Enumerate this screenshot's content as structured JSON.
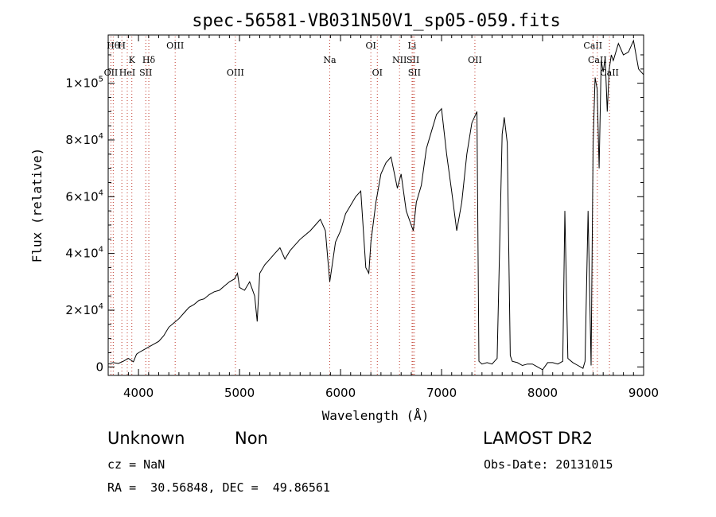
{
  "chart_data": {
    "type": "line",
    "title": "spec-56581-VB031N50V1_sp05-059.fits",
    "xlabel": "Wavelength (Å)",
    "ylabel": "Flux (relative)",
    "xlim": [
      3700,
      9000
    ],
    "ylim": [
      -3000,
      117000
    ],
    "xticks": [
      {
        "value": 4000,
        "label": "4000"
      },
      {
        "value": 5000,
        "label": "5000"
      },
      {
        "value": 6000,
        "label": "6000"
      },
      {
        "value": 7000,
        "label": "7000"
      },
      {
        "value": 8000,
        "label": "8000"
      },
      {
        "value": 9000,
        "label": "9000"
      }
    ],
    "yticks": [
      {
        "value": 0,
        "mant": "0",
        "exp": ""
      },
      {
        "value": 20000,
        "mant": "2×10",
        "exp": "4"
      },
      {
        "value": 40000,
        "mant": "4×10",
        "exp": "4"
      },
      {
        "value": 60000,
        "mant": "6×10",
        "exp": "4"
      },
      {
        "value": 80000,
        "mant": "8×10",
        "exp": "4"
      },
      {
        "value": 100000,
        "mant": "1×10",
        "exp": "5"
      }
    ],
    "grid": false,
    "spectrum": {
      "x": [
        3700,
        3750,
        3800,
        3850,
        3900,
        3950,
        3980,
        4000,
        4050,
        4100,
        4150,
        4200,
        4250,
        4300,
        4350,
        4400,
        4450,
        4500,
        4550,
        4600,
        4650,
        4700,
        4750,
        4800,
        4850,
        4900,
        4950,
        4980,
        5000,
        5050,
        5100,
        5150,
        5175,
        5200,
        5250,
        5300,
        5350,
        5400,
        5450,
        5500,
        5550,
        5600,
        5650,
        5700,
        5750,
        5800,
        5850,
        5893,
        5950,
        6000,
        6050,
        6100,
        6150,
        6200,
        6250,
        6280,
        6300,
        6350,
        6400,
        6450,
        6500,
        6563,
        6600,
        6650,
        6700,
        6720,
        6750,
        6800,
        6850,
        6900,
        6950,
        7000,
        7050,
        7100,
        7150,
        7200,
        7250,
        7300,
        7350,
        7370,
        7400,
        7450,
        7500,
        7550,
        7600,
        7620,
        7650,
        7680,
        7700,
        7750,
        7800,
        7850,
        7900,
        7950,
        8000,
        8050,
        8100,
        8150,
        8200,
        8220,
        8250,
        8300,
        8350,
        8400,
        8420,
        8450,
        8480,
        8500,
        8520,
        8540,
        8560,
        8580,
        8600,
        8620,
        8640,
        8660,
        8680,
        8700,
        8750,
        8800,
        8850,
        8900,
        8950,
        9000
      ],
      "y": [
        1000,
        1500,
        1200,
        2000,
        3000,
        1800,
        4500,
        5000,
        6000,
        7000,
        8000,
        9000,
        11000,
        14000,
        15500,
        17000,
        19000,
        21000,
        22000,
        23500,
        24000,
        25500,
        26500,
        27000,
        28500,
        30000,
        31000,
        33000,
        28000,
        27000,
        30000,
        25000,
        16000,
        33000,
        36000,
        38000,
        40000,
        42000,
        38000,
        41000,
        43000,
        45000,
        46500,
        48000,
        50000,
        52000,
        48000,
        30000,
        44000,
        48000,
        54000,
        57000,
        60000,
        62000,
        35000,
        33000,
        44000,
        58000,
        68000,
        72000,
        74000,
        63000,
        68000,
        55000,
        50000,
        48000,
        58000,
        64000,
        77000,
        83000,
        89000,
        91000,
        75000,
        62000,
        48000,
        58000,
        75000,
        86000,
        90000,
        2000,
        1000,
        1500,
        1000,
        3000,
        82000,
        88000,
        79000,
        4000,
        2000,
        1500,
        500,
        1000,
        1000,
        0,
        -1000,
        1500,
        1500,
        1000,
        2000,
        55000,
        3000,
        1500,
        500,
        -500,
        2000,
        55000,
        500,
        78000,
        102000,
        98000,
        70000,
        108000,
        104000,
        109000,
        90000,
        105000,
        110000,
        108000,
        114000,
        110000,
        111000,
        115000,
        105000,
        103000
      ]
    },
    "lines": [
      {
        "wave": 3750,
        "label": "Hθ",
        "row": 0
      },
      {
        "wave": 3835,
        "label": "H",
        "row": 0
      },
      {
        "wave": 4363,
        "label": "OIII",
        "row": 0
      },
      {
        "wave": 6300,
        "label": "OI",
        "row": 0
      },
      {
        "wave": 6708,
        "label": "Li",
        "row": 0
      },
      {
        "wave": 8498,
        "label": "CaII",
        "row": 0
      },
      {
        "wave": 3934,
        "label": "K",
        "row": 1
      },
      {
        "wave": 4102,
        "label": "Hδ",
        "row": 1
      },
      {
        "wave": 5893,
        "label": "Na",
        "row": 1
      },
      {
        "wave": 6584,
        "label": "NII",
        "row": 1
      },
      {
        "wave": 6717,
        "label": "SII",
        "row": 1
      },
      {
        "wave": 7330,
        "label": "OII",
        "row": 1
      },
      {
        "wave": 8542,
        "label": "CaII",
        "row": 1
      },
      {
        "wave": 3727,
        "label": "OII",
        "row": 2
      },
      {
        "wave": 3889,
        "label": "HeI",
        "row": 2
      },
      {
        "wave": 4072,
        "label": "SII",
        "row": 2
      },
      {
        "wave": 4959,
        "label": "OIII",
        "row": 2
      },
      {
        "wave": 6364,
        "label": "OI",
        "row": 2
      },
      {
        "wave": 6731,
        "label": "SII",
        "row": 2
      },
      {
        "wave": 8662,
        "label": "CaII",
        "row": 2
      }
    ]
  },
  "info": {
    "object_class": "Unknown",
    "subclass": "Non",
    "survey": "LAMOST DR2",
    "redshift": "cz = NaN",
    "obs_date": "Obs-Date: 20131015",
    "coords": "RA =  30.56848, DEC =  49.86561"
  }
}
